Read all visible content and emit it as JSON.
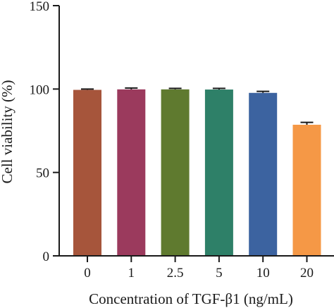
{
  "chart_data": {
    "type": "bar",
    "title": "",
    "xlabel": "Concentration of TGF-β1 (ng/mL)",
    "ylabel": "Cell viability (%)",
    "categories": [
      "0",
      "1",
      "2.5",
      "5",
      "10",
      "20"
    ],
    "values": [
      99.5,
      99.8,
      99.8,
      99.7,
      97.7,
      78.6
    ],
    "errors": [
      0.5,
      0.8,
      0.6,
      0.7,
      0.9,
      1.4
    ],
    "colors": [
      "#a6553b",
      "#9b3a5d",
      "#5f7a2f",
      "#2e8068",
      "#3c63a0",
      "#f59846"
    ],
    "ylim": [
      0,
      150
    ],
    "yticks": [
      0,
      50,
      100,
      150
    ],
    "grid": false
  }
}
